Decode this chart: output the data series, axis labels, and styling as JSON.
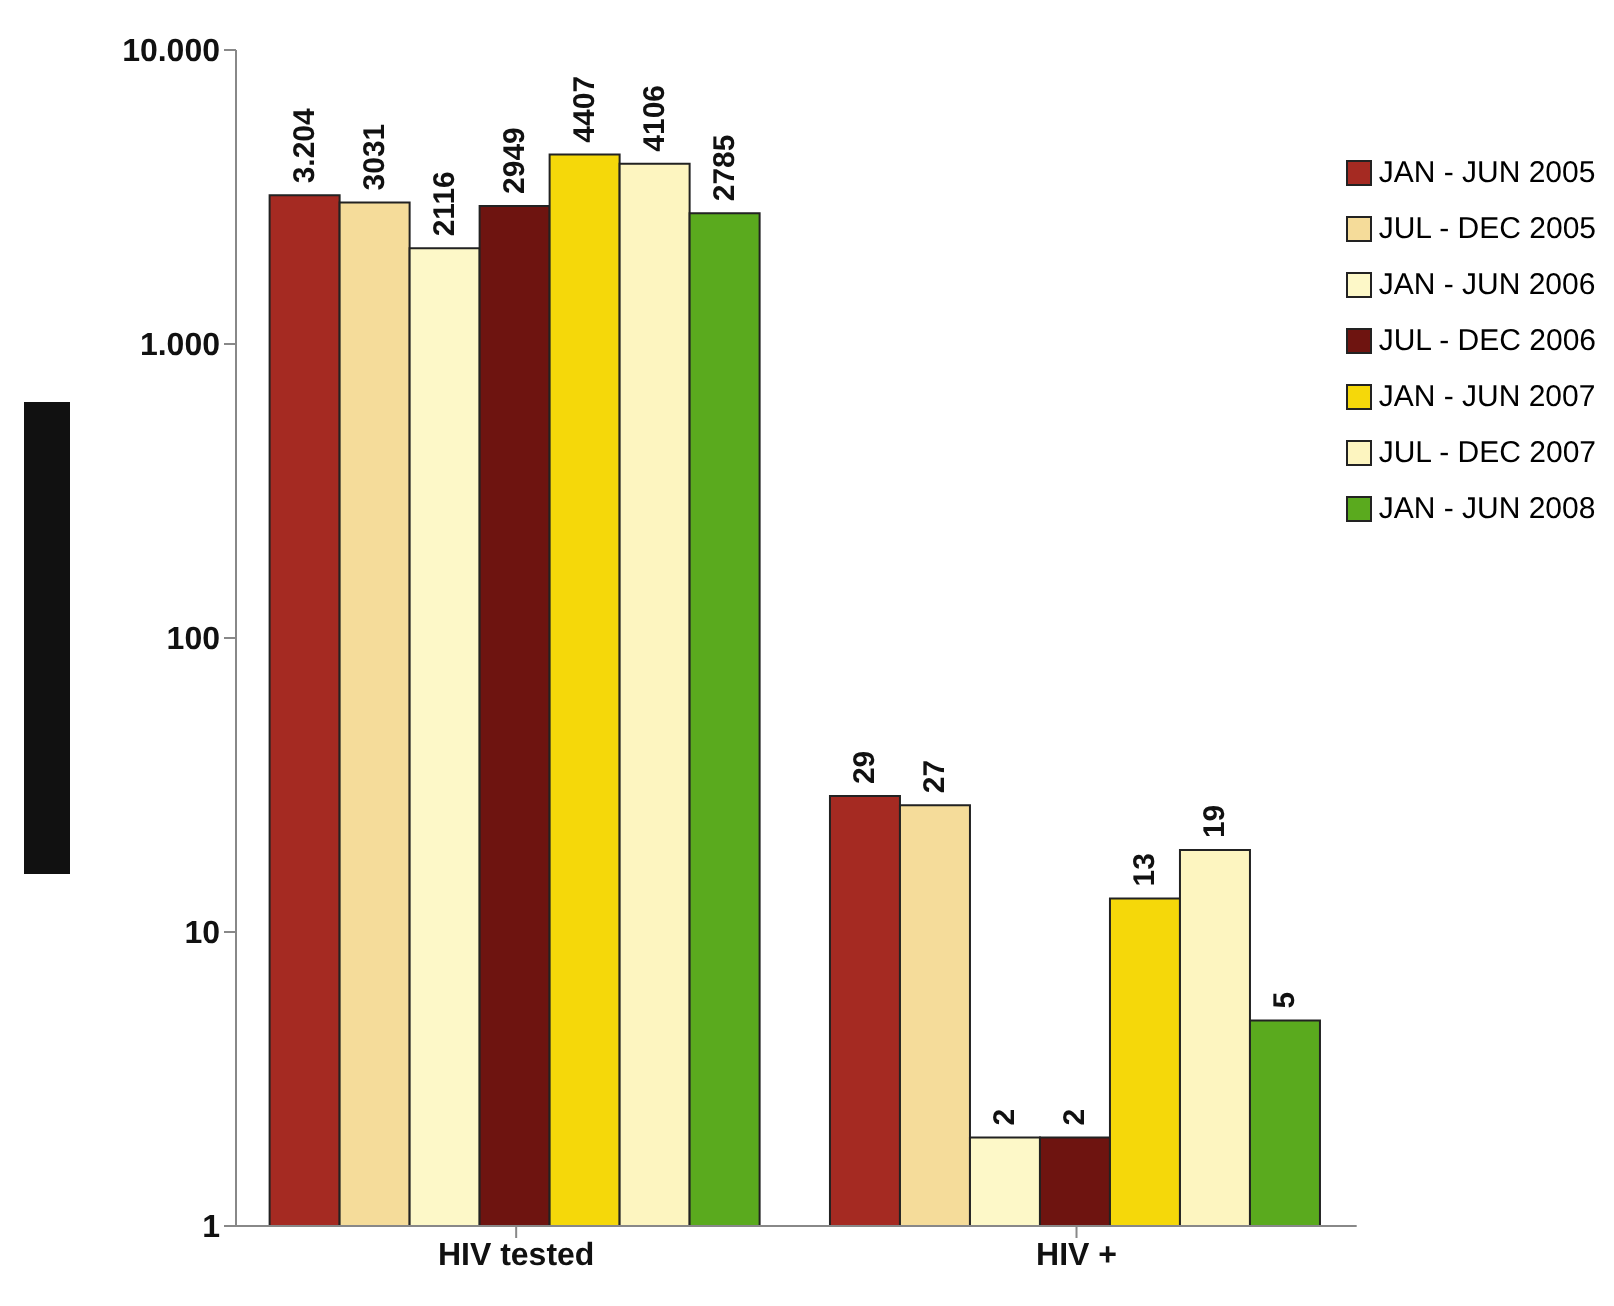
{
  "chart_data": {
    "type": "bar",
    "categories": [
      "HIV tested",
      "HIV +"
    ],
    "series": [
      {
        "name": "JAN - JUN 2005",
        "color": "#a52a22",
        "values": [
          3204,
          29
        ],
        "value_labels": [
          "3.204",
          "29"
        ]
      },
      {
        "name": "JUL - DEC 2005",
        "color": "#f5dc9a",
        "values": [
          3031,
          27
        ],
        "value_labels": [
          "3031",
          "27"
        ]
      },
      {
        "name": "JAN - JUN 2006",
        "color": "#fdf8c8",
        "values": [
          2116,
          2
        ],
        "value_labels": [
          "2116",
          "2"
        ]
      },
      {
        "name": "JUL - DEC 2006",
        "color": "#6e1410",
        "values": [
          2949,
          2
        ],
        "value_labels": [
          "2949",
          "2"
        ]
      },
      {
        "name": "JAN - JUN 2007",
        "color": "#f5d80a",
        "values": [
          4407,
          13
        ],
        "value_labels": [
          "4407",
          "13"
        ]
      },
      {
        "name": "JUL - DEC 2007",
        "color": "#fdf5c0",
        "values": [
          4106,
          19
        ],
        "value_labels": [
          "4106",
          "19"
        ]
      },
      {
        "name": "JAN - JUN 2008",
        "color": "#5aaa1e",
        "values": [
          2785,
          5
        ],
        "value_labels": [
          "2785",
          "5"
        ]
      }
    ],
    "log": true,
    "ylim": [
      1,
      10000
    ],
    "yticks": [
      1,
      10,
      100,
      {
        "value": 1000,
        "label": "1.000"
      },
      {
        "value": 10000,
        "label": "10.000"
      }
    ],
    "grid": false,
    "legend": "top right"
  }
}
